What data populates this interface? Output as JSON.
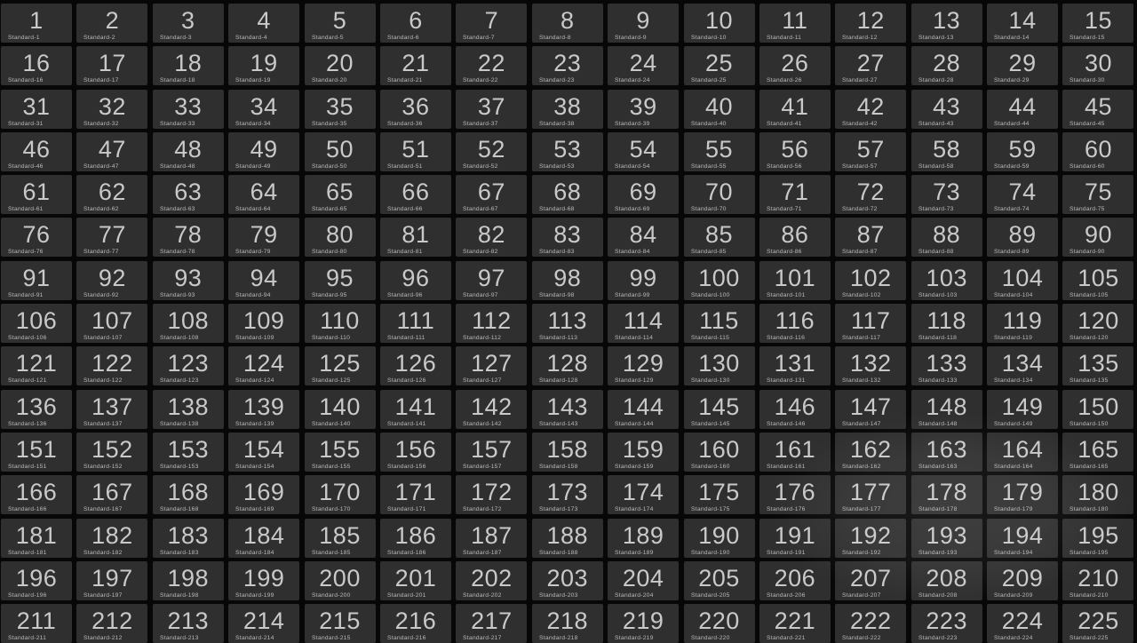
{
  "grid": {
    "columns": 15,
    "rows": 15,
    "label_prefix": "Standard-",
    "tiles": [
      1,
      2,
      3,
      4,
      5,
      6,
      7,
      8,
      9,
      10,
      11,
      12,
      13,
      14,
      15,
      16,
      17,
      18,
      19,
      20,
      21,
      22,
      23,
      24,
      25,
      26,
      27,
      28,
      29,
      30,
      31,
      32,
      33,
      34,
      35,
      36,
      37,
      38,
      39,
      40,
      41,
      42,
      43,
      44,
      45,
      46,
      47,
      48,
      49,
      50,
      51,
      52,
      53,
      54,
      55,
      56,
      57,
      58,
      59,
      60,
      61,
      62,
      63,
      64,
      65,
      66,
      67,
      68,
      69,
      70,
      71,
      72,
      73,
      74,
      75,
      76,
      77,
      78,
      79,
      80,
      81,
      82,
      83,
      84,
      85,
      86,
      87,
      88,
      89,
      90,
      91,
      92,
      93,
      94,
      95,
      96,
      97,
      98,
      99,
      100,
      101,
      102,
      103,
      104,
      105,
      106,
      107,
      108,
      109,
      110,
      111,
      112,
      113,
      114,
      115,
      116,
      117,
      118,
      119,
      120,
      121,
      122,
      123,
      124,
      125,
      126,
      127,
      128,
      129,
      130,
      131,
      132,
      133,
      134,
      135,
      136,
      137,
      138,
      139,
      140,
      141,
      142,
      143,
      144,
      145,
      146,
      147,
      148,
      149,
      150,
      151,
      152,
      153,
      154,
      155,
      156,
      157,
      158,
      159,
      160,
      161,
      162,
      163,
      164,
      165,
      166,
      167,
      168,
      169,
      170,
      171,
      172,
      173,
      174,
      175,
      176,
      177,
      178,
      179,
      180,
      181,
      182,
      183,
      184,
      185,
      186,
      187,
      188,
      189,
      190,
      191,
      192,
      193,
      194,
      195,
      196,
      197,
      198,
      199,
      200,
      201,
      202,
      203,
      204,
      205,
      206,
      207,
      208,
      209,
      210,
      211,
      212,
      213,
      214,
      215,
      216,
      217,
      218,
      219,
      220,
      221,
      222,
      223,
      224,
      225
    ]
  },
  "colors": {
    "background": "#070707",
    "tile_background": "#2f2f2f",
    "number_text": "#c9c9c9",
    "label_text": "#b9b9b9"
  }
}
